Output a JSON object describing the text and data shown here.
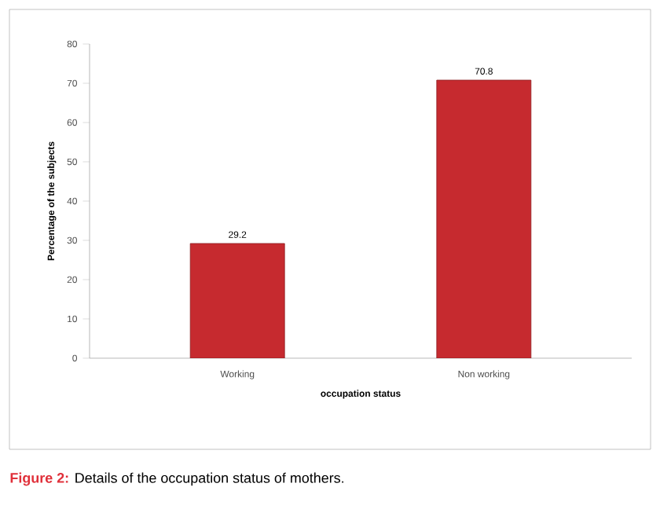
{
  "chart_data": {
    "type": "bar",
    "xlabel": "occupation status",
    "ylabel": "Percentage of the subjects",
    "categories": [
      "Working",
      "Non working"
    ],
    "values": [
      29.2,
      70.8
    ],
    "color": "#c62a2f",
    "ylim": [
      0,
      80
    ],
    "yticks": [
      0,
      10,
      20,
      30,
      40,
      50,
      60,
      70,
      80
    ],
    "grid": false,
    "data_labels": true,
    "annotations": [
      "Figure 2:",
      "Details of the occupation status of mothers."
    ]
  }
}
